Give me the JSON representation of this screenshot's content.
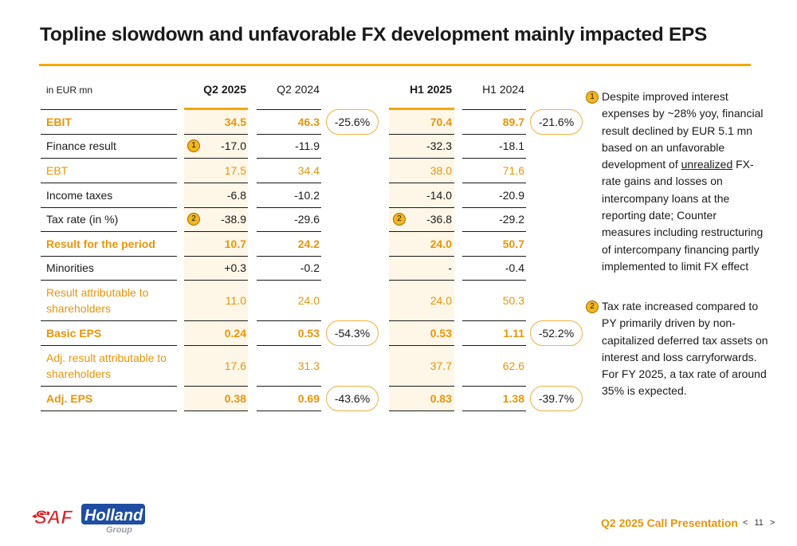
{
  "title": "Topline slowdown and unfavorable FX development mainly impacted EPS",
  "table": {
    "unit_label": "in EUR mn",
    "headers": {
      "q2_2025": "Q2 2025",
      "q2_2024": "Q2 2024",
      "h1_2025": "H1 2025",
      "h1_2024": "H1 2024"
    },
    "rows": [
      {
        "label": "EBIT",
        "q2_2025": "34.5",
        "q2_2024": "46.3",
        "q_change": "-25.6%",
        "h1_2025": "70.4",
        "h1_2024": "89.7",
        "h_change": "-21.6%"
      },
      {
        "label": "Finance result",
        "q_marker": "1",
        "q2_2025": "-17.0",
        "q2_2024": "-11.9",
        "h1_2025": "-32.3",
        "h1_2024": "-18.1"
      },
      {
        "label": "EBT",
        "q2_2025": "17.5",
        "q2_2024": "34.4",
        "h1_2025": "38.0",
        "h1_2024": "71.6"
      },
      {
        "label": "Income taxes",
        "q2_2025": "-6.8",
        "q2_2024": "-10.2",
        "h1_2025": "-14.0",
        "h1_2024": "-20.9"
      },
      {
        "label": "Tax rate (in %)",
        "q_marker": "2",
        "h_marker": "2",
        "q2_2025": "-38.9",
        "q2_2024": "-29.6",
        "h1_2025": "-36.8",
        "h1_2024": "-29.2"
      },
      {
        "label": "Result for the period",
        "q2_2025": "10.7",
        "q2_2024": "24.2",
        "h1_2025": "24.0",
        "h1_2024": "50.7"
      },
      {
        "label": "Minorities",
        "q2_2025": "+0.3",
        "q2_2024": "-0.2",
        "h1_2025": "-",
        "h1_2024": "-0.4"
      },
      {
        "label_line1": "Result attributable to",
        "label_line2": "shareholders",
        "q2_2025": "11.0",
        "q2_2024": "24.0",
        "h1_2025": "24.0",
        "h1_2024": "50.3"
      },
      {
        "label": "Basic EPS",
        "q2_2025": "0.24",
        "q2_2024": "0.53",
        "q_change": "-54.3%",
        "h1_2025": "0.53",
        "h1_2024": "1.11",
        "h_change": "-52.2%"
      },
      {
        "label_line1": "Adj. result attributable to",
        "label_line2": "shareholders",
        "q2_2025": "17.6",
        "q2_2024": "31.3",
        "h1_2025": "37.7",
        "h1_2024": "62.6"
      },
      {
        "label": "Adj. EPS",
        "q2_2025": "0.38",
        "q2_2024": "0.69",
        "q_change": "-43.6%",
        "h1_2025": "0.83",
        "h1_2024": "1.38",
        "h_change": "-39.7%"
      }
    ]
  },
  "notes": [
    {
      "marker": "1",
      "lines": [
        "Despite improved interest",
        "expenses by ~28% yoy, financial",
        "result declined by EUR 5.1 mn",
        "based on an unfavorable"
      ],
      "line5_pre": "development of ",
      "line5_underlined": "unrealized",
      "line5_post": " FX-",
      "lines_after": [
        "rate gains and losses on",
        "intercompany loans at the",
        "reporting date; Counter",
        "measures including restructuring",
        "of intercompany financing partly",
        "implemented to limit FX effect"
      ]
    },
    {
      "marker": "2",
      "lines": [
        "Tax rate increased compared to",
        "PY primarily driven by non-",
        "capitalized deferred tax assets on",
        "interest and loss carryforwards.",
        "For FY 2025, a tax rate of around",
        "35% is expected."
      ]
    }
  ],
  "footer": {
    "presentation": "Q2 2025 Call Presentation",
    "prev": "<",
    "page": "11",
    "next": ">",
    "logo_text": "SAF Holland",
    "logo_sub": "Group"
  },
  "colors": {
    "accent": "#f5a800",
    "accent_text": "#e8950a",
    "shade": "#fef6e7",
    "marker": "#f5b51c",
    "logo_red": "#d8232a",
    "logo_blue": "#1e4da1"
  }
}
